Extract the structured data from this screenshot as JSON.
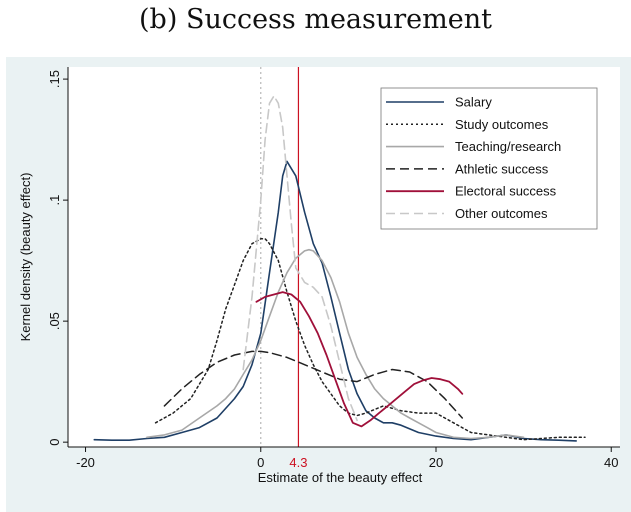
{
  "title": "(b) Success measurement",
  "chart_data": {
    "type": "line",
    "xlabel": "Estimate of the beauty effect",
    "ylabel": "Kernel density (beauty effect)",
    "xlim": [
      -22,
      41
    ],
    "ylim": [
      -0.002,
      0.155
    ],
    "x_ticks": [
      {
        "value": -20,
        "label": "-20"
      },
      {
        "value": 0,
        "label": "0"
      },
      {
        "value": 20,
        "label": "20"
      },
      {
        "value": 40,
        "label": "40"
      }
    ],
    "y_ticks": [
      {
        "value": 0,
        "label": "0"
      },
      {
        "value": 0.05,
        "label": ".05"
      },
      {
        "value": 0.1,
        "label": ".1"
      },
      {
        "value": 0.15,
        "label": ".15"
      }
    ],
    "grid": false,
    "legend_position": "top-right",
    "reference_lines": [
      {
        "x": 0,
        "color": "#b8b8b8",
        "style": "dotted"
      },
      {
        "x": 4.3,
        "color": "#cc1122",
        "style": "solid",
        "label": "4.3"
      }
    ],
    "series": [
      {
        "name": "Salary",
        "color": "#1f3f66",
        "dash": "solid",
        "width": 1.6,
        "x": [
          -19,
          -17,
          -15,
          -13,
          -11,
          -9,
          -7,
          -5,
          -3,
          -2,
          -1,
          0,
          1,
          2,
          2.5,
          3,
          4,
          5,
          6,
          7,
          8,
          9,
          10,
          11,
          12,
          13,
          14,
          15,
          16,
          18,
          20,
          22,
          24,
          26,
          28,
          30,
          32,
          34,
          36
        ],
        "y": [
          0.001,
          0.0008,
          0.0008,
          0.0015,
          0.002,
          0.004,
          0.006,
          0.01,
          0.018,
          0.023,
          0.032,
          0.045,
          0.07,
          0.095,
          0.11,
          0.116,
          0.11,
          0.095,
          0.082,
          0.074,
          0.06,
          0.045,
          0.03,
          0.02,
          0.013,
          0.01,
          0.008,
          0.008,
          0.007,
          0.004,
          0.0025,
          0.0015,
          0.001,
          0.002,
          0.003,
          0.0015,
          0.001,
          0.0008,
          0.0005
        ]
      },
      {
        "name": "Study outcomes",
        "color": "#222222",
        "dash": "dotted",
        "width": 1.5,
        "x": [
          -12,
          -10,
          -8,
          -6,
          -5,
          -4,
          -3,
          -2,
          -1,
          0,
          0.5,
          1,
          2,
          3,
          4,
          5,
          6,
          7,
          8,
          9,
          10,
          11,
          12,
          14,
          16,
          18,
          20,
          22,
          24,
          26,
          28,
          30,
          32,
          34,
          37
        ],
        "y": [
          0.008,
          0.012,
          0.018,
          0.03,
          0.042,
          0.055,
          0.065,
          0.075,
          0.082,
          0.084,
          0.084,
          0.082,
          0.075,
          0.062,
          0.05,
          0.04,
          0.032,
          0.025,
          0.02,
          0.015,
          0.012,
          0.011,
          0.012,
          0.015,
          0.013,
          0.012,
          0.012,
          0.008,
          0.004,
          0.003,
          0.002,
          0.001,
          0.0015,
          0.002,
          0.002
        ]
      },
      {
        "name": "Teaching/research",
        "color": "#a8a8a8",
        "dash": "solid",
        "width": 1.6,
        "x": [
          -13,
          -11,
          -9,
          -7,
          -5,
          -4,
          -3,
          -2,
          -1,
          0,
          1,
          2,
          3,
          4,
          5,
          5.5,
          6,
          7,
          8,
          9,
          10,
          11,
          12,
          13,
          14,
          15,
          16,
          17,
          18,
          19,
          20,
          21,
          22,
          24,
          26,
          28,
          30
        ],
        "y": [
          0.002,
          0.003,
          0.005,
          0.01,
          0.015,
          0.018,
          0.022,
          0.028,
          0.034,
          0.042,
          0.052,
          0.062,
          0.07,
          0.076,
          0.079,
          0.0795,
          0.079,
          0.075,
          0.068,
          0.058,
          0.045,
          0.035,
          0.028,
          0.022,
          0.018,
          0.015,
          0.012,
          0.01,
          0.008,
          0.006,
          0.004,
          0.003,
          0.002,
          0.0015,
          0.002,
          0.003,
          0.002
        ]
      },
      {
        "name": "Athletic success",
        "color": "#222222",
        "dash": "dashed",
        "width": 1.5,
        "x": [
          -11,
          -9,
          -7,
          -5,
          -3,
          -1,
          0,
          1,
          3,
          5,
          7,
          9,
          11,
          13,
          15,
          17,
          19,
          21,
          23
        ],
        "y": [
          0.015,
          0.022,
          0.028,
          0.033,
          0.036,
          0.0375,
          0.0375,
          0.037,
          0.035,
          0.032,
          0.029,
          0.026,
          0.025,
          0.028,
          0.03,
          0.029,
          0.025,
          0.018,
          0.01
        ]
      },
      {
        "name": "Electoral success",
        "color": "#a0103a",
        "dash": "solid",
        "width": 1.8,
        "x": [
          -0.5,
          0.5,
          1.5,
          2.5,
          3.5,
          4.5,
          5.5,
          6.5,
          7.5,
          8.5,
          9.5,
          10.5,
          11.5,
          12.5,
          13.5,
          14.5,
          15.5,
          16.5,
          17.5,
          18.5,
          19.5,
          20.5,
          21.5,
          22.5,
          23
        ],
        "y": [
          0.058,
          0.06,
          0.061,
          0.062,
          0.061,
          0.058,
          0.052,
          0.045,
          0.036,
          0.026,
          0.016,
          0.008,
          0.0065,
          0.009,
          0.012,
          0.015,
          0.018,
          0.021,
          0.024,
          0.0255,
          0.0265,
          0.026,
          0.025,
          0.022,
          0.02
        ]
      },
      {
        "name": "Other outcomes",
        "color": "#c8c8c8",
        "dash": "dashed",
        "width": 1.6,
        "x": [
          -2,
          -1,
          0,
          0.5,
          1,
          1.5,
          2,
          2.5,
          3,
          3.5,
          4,
          5,
          6,
          7,
          8,
          9,
          10,
          11
        ],
        "y": [
          0.03,
          0.06,
          0.1,
          0.125,
          0.14,
          0.143,
          0.14,
          0.13,
          0.11,
          0.09,
          0.072,
          0.066,
          0.064,
          0.06,
          0.048,
          0.033,
          0.018,
          0.009
        ]
      }
    ]
  }
}
